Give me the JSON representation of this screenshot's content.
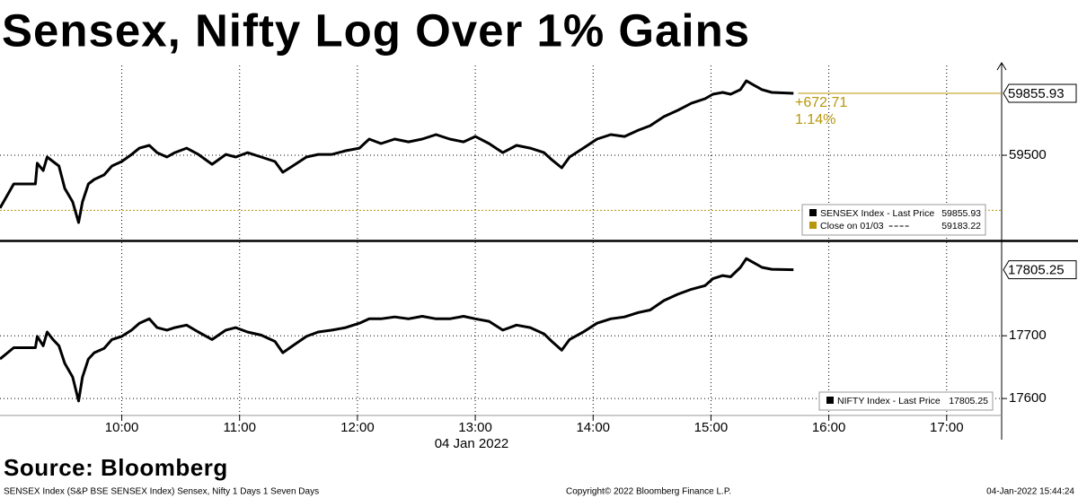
{
  "title": "Sensex, Nifty Log Over 1% Gains",
  "source": "Source: Bloomberg",
  "footer": {
    "left": "SENSEX Index (S&P BSE SENSEX Index) Sensex, Nifty 1 Days 1 Seven Days",
    "center": "Copyright© 2022 Bloomberg Finance L.P.",
    "right": "04-Jan-2022 15:44:24"
  },
  "chart_data": [
    {
      "type": "line",
      "x": [
        "08:58",
        "09:05",
        "09:16",
        "09:17",
        "09:20",
        "09:22",
        "09:25",
        "09:28",
        "09:31",
        "09:35",
        "09:38",
        "09:40",
        "09:43",
        "09:46",
        "09:51",
        "09:55",
        "10:00",
        "10:05",
        "10:09",
        "10:14",
        "10:18",
        "10:23",
        "10:27",
        "10:33",
        "10:39",
        "10:46",
        "10:53",
        "10:58",
        "11:04",
        "11:11",
        "11:18",
        "11:22",
        "11:27",
        "11:34",
        "11:40",
        "11:47",
        "11:54",
        "12:01",
        "12:06",
        "12:12",
        "12:19",
        "12:26",
        "12:33",
        "12:40",
        "12:47",
        "12:54",
        "13:00",
        "13:07",
        "13:14",
        "13:21",
        "13:28",
        "13:35",
        "13:39",
        "13:44",
        "13:48",
        "13:55",
        "14:02",
        "14:09",
        "14:16",
        "14:23",
        "14:29",
        "14:36",
        "14:43",
        "14:50",
        "14:57",
        "15:01",
        "15:06",
        "15:10",
        "15:15",
        "15:18",
        "15:22",
        "15:26",
        "15:31",
        "15:42"
      ],
      "xlim": [
        "08:58",
        "17:28"
      ],
      "xticks": [
        "10:00",
        "11:00",
        "12:00",
        "13:00",
        "14:00",
        "15:00",
        "16:00",
        "17:00"
      ],
      "ylim": [
        59010,
        60016
      ],
      "yticks": [
        59500
      ],
      "grid": true,
      "legend": "lower right",
      "series": [
        {
          "name": "SENSEX Index - Last Price",
          "color": "#000000",
          "values": [
            59196,
            59335,
            59335,
            59454,
            59412,
            59490,
            59464,
            59438,
            59309,
            59232,
            59113,
            59232,
            59335,
            59361,
            59387,
            59438,
            59464,
            59505,
            59541,
            59557,
            59515,
            59490,
            59515,
            59541,
            59505,
            59448,
            59505,
            59490,
            59515,
            59490,
            59464,
            59402,
            59438,
            59490,
            59505,
            59505,
            59526,
            59541,
            59593,
            59567,
            59593,
            59577,
            59593,
            59619,
            59593,
            59577,
            59608,
            59567,
            59515,
            59557,
            59541,
            59515,
            59474,
            59428,
            59490,
            59541,
            59593,
            59619,
            59608,
            59644,
            59670,
            59722,
            59758,
            59799,
            59825,
            59851,
            59861,
            59851,
            59877,
            59928,
            59902,
            59877,
            59861,
            59855.93
          ]
        }
      ],
      "reference_line": {
        "name": "Close on 01/03",
        "value": 59183.22,
        "color": "#b8960a"
      },
      "change": {
        "value": 672.71,
        "label": "+672.71"
      },
      "change_pct": {
        "value": 1.14,
        "label": "1.14%"
      }
    },
    {
      "type": "line",
      "x": [
        "08:58",
        "09:05",
        "09:16",
        "09:17",
        "09:20",
        "09:22",
        "09:25",
        "09:28",
        "09:31",
        "09:35",
        "09:38",
        "09:40",
        "09:43",
        "09:46",
        "09:51",
        "09:55",
        "10:00",
        "10:05",
        "10:09",
        "10:14",
        "10:18",
        "10:23",
        "10:27",
        "10:33",
        "10:39",
        "10:46",
        "10:53",
        "10:58",
        "11:04",
        "11:11",
        "11:18",
        "11:22",
        "11:27",
        "11:34",
        "11:40",
        "11:47",
        "11:54",
        "12:01",
        "12:06",
        "12:12",
        "12:19",
        "12:26",
        "12:33",
        "12:40",
        "12:47",
        "12:54",
        "13:00",
        "13:07",
        "13:14",
        "13:21",
        "13:28",
        "13:35",
        "13:39",
        "13:44",
        "13:48",
        "13:55",
        "14:02",
        "14:09",
        "14:16",
        "14:23",
        "14:29",
        "14:36",
        "14:43",
        "14:50",
        "14:57",
        "15:01",
        "15:06",
        "15:10",
        "15:15",
        "15:18",
        "15:22",
        "15:26",
        "15:31",
        "15:42"
      ],
      "xlim": [
        "08:58",
        "17:28"
      ],
      "xticks": [
        "10:00",
        "11:00",
        "12:00",
        "13:00",
        "14:00",
        "15:00",
        "16:00",
        "17:00"
      ],
      "xlabel": "04 Jan 2022",
      "ylim": [
        17573,
        17849
      ],
      "yticks": [
        17600,
        17700
      ],
      "grid": true,
      "legend": "lower right",
      "series": [
        {
          "name": "NIFTY Index - Last Price",
          "color": "#000000",
          "values": [
            17663,
            17681,
            17681,
            17699,
            17684,
            17706,
            17694,
            17684,
            17656,
            17634,
            17596,
            17634,
            17663,
            17673,
            17680,
            17694,
            17699,
            17709,
            17720,
            17727,
            17713,
            17709,
            17713,
            17717,
            17706,
            17694,
            17709,
            17713,
            17706,
            17701,
            17691,
            17673,
            17684,
            17699,
            17706,
            17709,
            17713,
            17720,
            17727,
            17727,
            17730,
            17727,
            17731,
            17727,
            17727,
            17731,
            17727,
            17723,
            17709,
            17717,
            17713,
            17703,
            17691,
            17677,
            17694,
            17706,
            17720,
            17727,
            17730,
            17737,
            17741,
            17756,
            17766,
            17774,
            17780,
            17791,
            17796,
            17794,
            17809,
            17823,
            17816,
            17809,
            17806,
            17805.25
          ]
        }
      ]
    }
  ]
}
